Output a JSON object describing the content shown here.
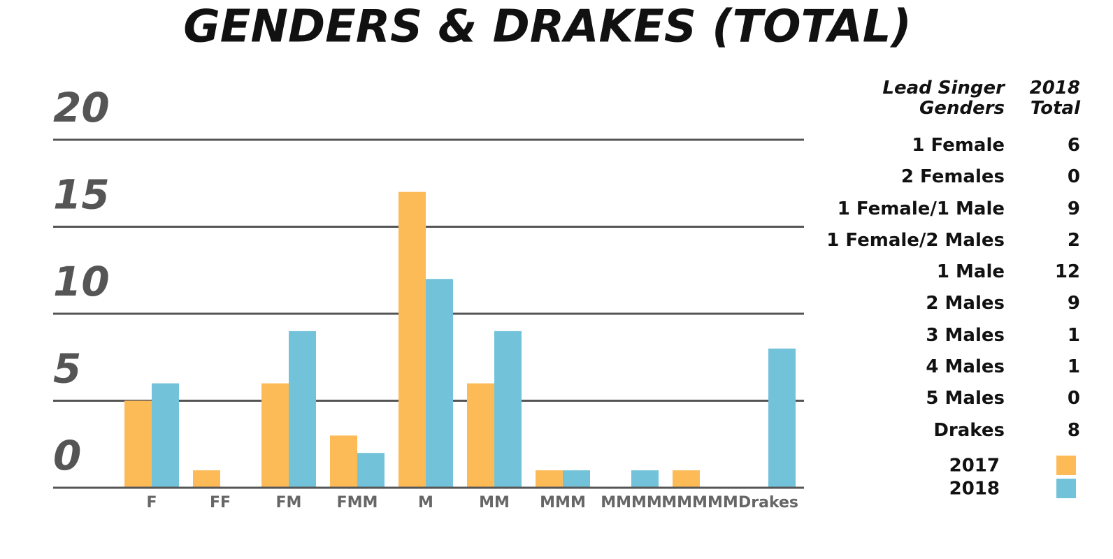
{
  "chart_data": {
    "type": "bar",
    "title": "GENDERS & DRAKES (TOTAL)",
    "categories": [
      "F",
      "FF",
      "FM",
      "FMM",
      "M",
      "MM",
      "MMM",
      "MMMM",
      "MMMMM",
      "Drakes"
    ],
    "series": [
      {
        "name": "2017",
        "color": "#fdbb58",
        "values": [
          5,
          1,
          6,
          3,
          17,
          6,
          1,
          0,
          1,
          0
        ]
      },
      {
        "name": "2018",
        "color": "#72c3da",
        "values": [
          6,
          0,
          9,
          2,
          12,
          9,
          1,
          1,
          0,
          8
        ]
      }
    ],
    "ylim": [
      0,
      20
    ],
    "yticks": [
      0,
      5,
      10,
      15,
      20
    ],
    "grid": true
  },
  "table": {
    "headers": [
      "Lead Singer Genders",
      "2018 Total"
    ],
    "rows": [
      [
        "1 Female",
        6
      ],
      [
        "2 Females",
        0
      ],
      [
        "1 Female/1 Male",
        9
      ],
      [
        "1 Female/2 Males",
        2
      ],
      [
        "1 Male",
        12
      ],
      [
        "2 Males",
        9
      ],
      [
        "3 Males",
        1
      ],
      [
        "4 Males",
        1
      ],
      [
        "5 Males",
        0
      ],
      [
        "Drakes",
        8
      ]
    ]
  }
}
